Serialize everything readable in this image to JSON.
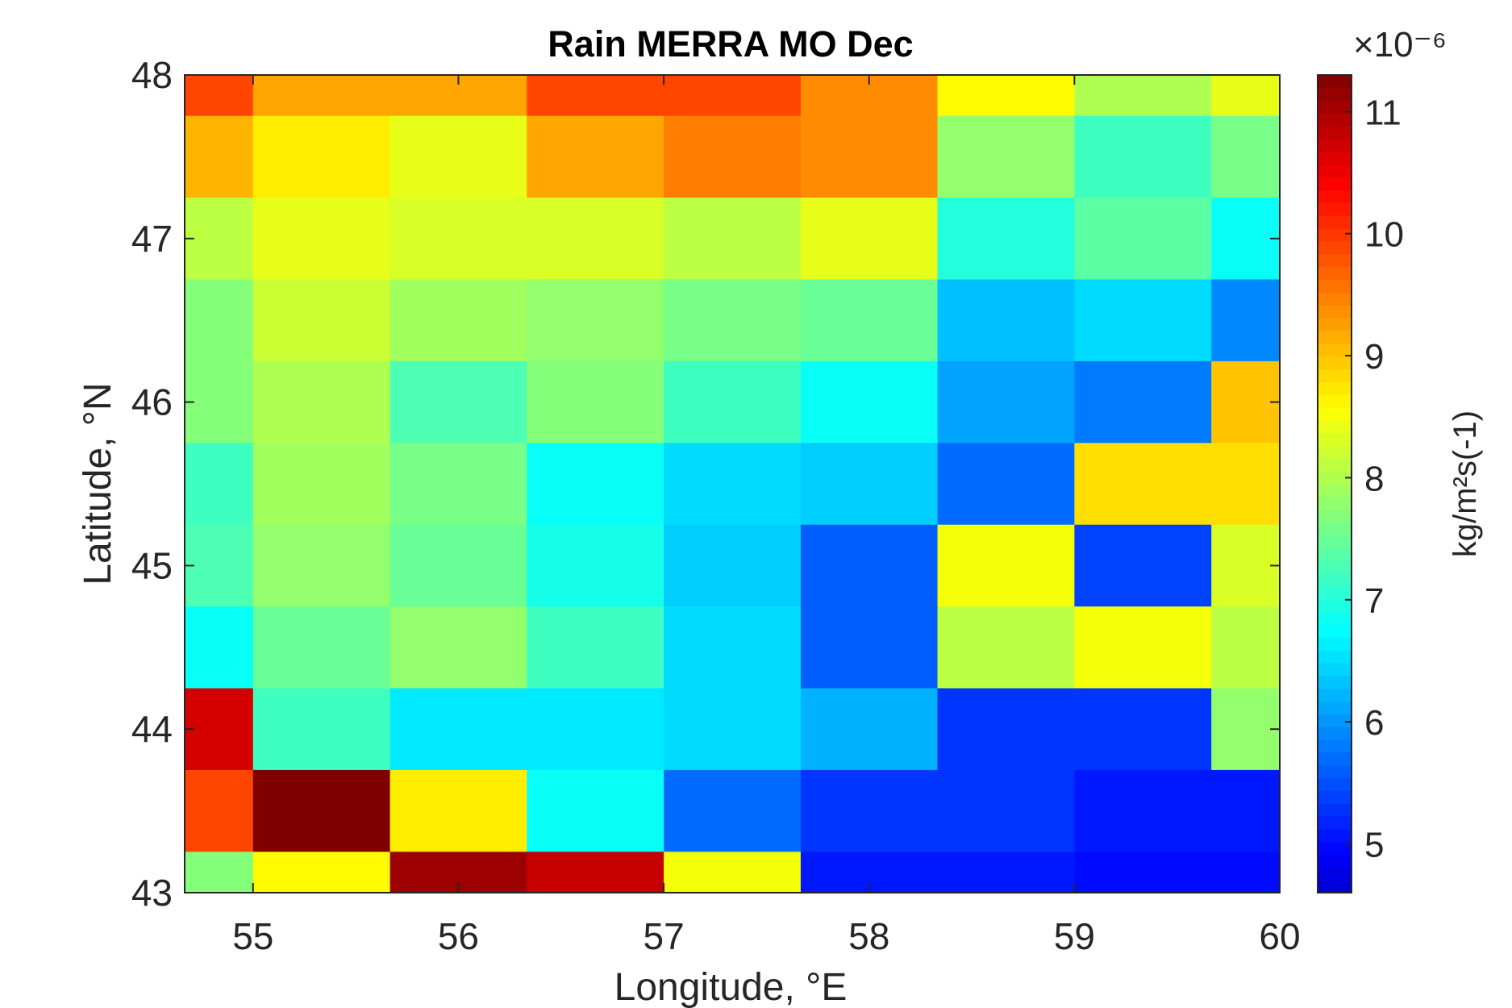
{
  "chart_data": {
    "type": "heatmap",
    "title": "Rain MERRA MO Dec",
    "xlabel": "Longitude, °E",
    "ylabel": "Latitude, °N",
    "colorbar_label": "kg/m²s(-1)",
    "colorbar_exponent": "×10⁻⁶",
    "colormap": "jet",
    "xlim": [
      54.667,
      60
    ],
    "ylim": [
      43,
      48
    ],
    "clim": [
      4.6,
      11.3
    ],
    "x_ticks": [
      55,
      56,
      57,
      58,
      59,
      60
    ],
    "y_ticks": [
      43,
      44,
      45,
      46,
      47,
      48
    ],
    "colorbar_ticks": [
      5,
      6,
      7,
      8,
      9,
      10,
      11
    ],
    "x_edges": [
      54.667,
      55.0,
      55.667,
      56.333,
      57.0,
      57.667,
      58.333,
      59.0,
      59.667,
      60.0
    ],
    "y_edges": [
      48.0,
      47.75,
      47.25,
      46.75,
      46.25,
      45.75,
      45.25,
      44.75,
      44.25,
      43.75,
      43.25,
      43.0
    ],
    "grid": false,
    "values": [
      [
        9.9,
        9.2,
        9.2,
        9.9,
        9.9,
        9.4,
        8.6,
        8.0,
        8.4
      ],
      [
        9.1,
        8.7,
        8.4,
        9.2,
        9.5,
        9.4,
        7.8,
        7.2,
        7.6
      ],
      [
        8.1,
        8.4,
        8.3,
        8.3,
        8.1,
        8.4,
        7.0,
        7.4,
        6.8
      ],
      [
        7.7,
        8.2,
        7.9,
        7.8,
        7.6,
        7.5,
        6.3,
        6.5,
        5.9
      ],
      [
        7.7,
        8.0,
        7.3,
        7.7,
        7.2,
        6.8,
        6.1,
        5.8,
        9.0
      ],
      [
        7.2,
        7.9,
        7.6,
        6.8,
        6.5,
        6.4,
        5.7,
        8.8,
        8.8
      ],
      [
        7.3,
        7.8,
        7.5,
        6.9,
        6.4,
        5.6,
        8.5,
        5.4,
        8.3
      ],
      [
        6.8,
        7.5,
        7.8,
        7.2,
        6.5,
        5.6,
        8.1,
        8.5,
        8.1
      ],
      [
        10.7,
        7.2,
        6.6,
        6.6,
        6.5,
        6.2,
        5.3,
        5.3,
        7.8
      ],
      [
        9.9,
        11.3,
        8.7,
        6.8,
        5.7,
        5.3,
        5.3,
        5.1,
        5.1
      ],
      [
        7.7,
        8.6,
        11.1,
        10.8,
        8.5,
        5.1,
        5.1,
        5.0,
        5.0
      ]
    ]
  }
}
